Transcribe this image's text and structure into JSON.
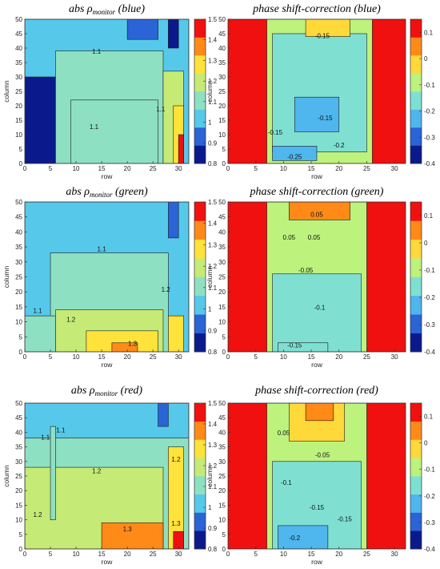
{
  "figure": {
    "background": "#ffffff"
  },
  "chart_data": [
    {
      "id": "abs-blue",
      "type": "heatmap",
      "title_main": "abs ρ",
      "title_subscript": "monitor",
      "title_suffix": " (blue)",
      "xlabel": "row",
      "ylabel": "column",
      "xlim": [
        0,
        32
      ],
      "ylim": [
        0,
        50
      ],
      "x_ticks": [
        "0",
        "5",
        "10",
        "15",
        "20",
        "25",
        "30"
      ],
      "y_ticks": [
        "0",
        "5",
        "10",
        "15",
        "20",
        "25",
        "30",
        "35",
        "40",
        "45",
        "50"
      ],
      "colorbar": {
        "min": 0.8,
        "max": 1.5,
        "ticks": [
          "0.8",
          "0.9",
          "1",
          "1.1",
          "1.2",
          "1.3",
          "1.4",
          "1.5"
        ],
        "colors": [
          "#0a1a8c",
          "#2a64d6",
          "#56c9ea",
          "#8ee0c2",
          "#c6ea76",
          "#ffe23a",
          "#ff8a18",
          "#f01010"
        ]
      },
      "regions": [
        {
          "x": [
            0,
            32
          ],
          "y": [
            0,
            50
          ],
          "value": 1.0
        },
        {
          "x": [
            0,
            6
          ],
          "y": [
            0,
            30
          ],
          "value": 0.8
        },
        {
          "x": [
            6,
            27
          ],
          "y": [
            0,
            39
          ],
          "value": 1.1
        },
        {
          "x": [
            9,
            26
          ],
          "y": [
            0,
            22
          ],
          "value": 1.15
        },
        {
          "x": [
            27,
            31
          ],
          "y": [
            0,
            32
          ],
          "value": 1.2
        },
        {
          "x": [
            29,
            31
          ],
          "y": [
            0,
            20
          ],
          "value": 1.3
        },
        {
          "x": [
            30,
            31
          ],
          "y": [
            0,
            10
          ],
          "value": 1.45
        },
        {
          "x": [
            20,
            26
          ],
          "y": [
            43,
            50
          ],
          "value": 0.9
        },
        {
          "x": [
            28,
            30
          ],
          "y": [
            40,
            50
          ],
          "value": 0.85
        }
      ],
      "contour_labels": [
        {
          "x": 13.5,
          "y": 12.0,
          "text": "1.1"
        },
        {
          "x": 14.0,
          "y": 38.0,
          "text": "1.1"
        },
        {
          "x": 26.5,
          "y": 18.0,
          "text": "1.1"
        }
      ]
    },
    {
      "id": "phase-blue",
      "type": "heatmap",
      "title_main": "phase shift-correction (blue)",
      "xlabel": "row",
      "ylabel": "column",
      "xlim": [
        0,
        32
      ],
      "ylim": [
        0,
        50
      ],
      "x_ticks": [
        "0",
        "5",
        "10",
        "15",
        "20",
        "25",
        "30"
      ],
      "y_ticks": [
        "0",
        "5",
        "10",
        "15",
        "20",
        "25",
        "30",
        "35",
        "40",
        "45",
        "50"
      ],
      "colorbar": {
        "min": -0.4,
        "max": 0.15,
        "ticks": [
          "-0.4",
          "-0.3",
          "-0.2",
          "-0.1",
          "0",
          "0.1"
        ],
        "colors": [
          "#0a1a8c",
          "#2a64d6",
          "#4fb6ee",
          "#7fe0d2",
          "#bdf27d",
          "#ffd83a",
          "#ff8a18",
          "#f01010"
        ]
      },
      "regions": [
        {
          "x": [
            0,
            32
          ],
          "y": [
            0,
            50
          ],
          "value": 0.12
        },
        {
          "x": [
            7,
            26
          ],
          "y": [
            0,
            50
          ],
          "value": -0.12
        },
        {
          "x": [
            8,
            25
          ],
          "y": [
            4,
            45
          ],
          "value": -0.15
        },
        {
          "x": [
            12,
            20
          ],
          "y": [
            11,
            23
          ],
          "value": -0.2
        },
        {
          "x": [
            8,
            16
          ],
          "y": [
            1,
            6
          ],
          "value": -0.25
        },
        {
          "x": [
            14,
            22
          ],
          "y": [
            44,
            50
          ],
          "value": -0.05
        }
      ],
      "contour_labels": [
        {
          "x": 17.0,
          "y": 43.5,
          "text": "-0.15"
        },
        {
          "x": 17.5,
          "y": 15.0,
          "text": "-0.15"
        },
        {
          "x": 20.0,
          "y": 5.5,
          "text": "-0.2"
        },
        {
          "x": 12.0,
          "y": 1.5,
          "text": "-0.25"
        },
        {
          "x": 8.5,
          "y": 10.0,
          "text": "-0.15"
        }
      ]
    },
    {
      "id": "abs-green",
      "type": "heatmap",
      "title_main": "abs ρ",
      "title_subscript": "monitor",
      "title_suffix": " (green)",
      "xlabel": "row",
      "ylabel": "column",
      "xlim": [
        0,
        32
      ],
      "ylim": [
        0,
        50
      ],
      "x_ticks": [
        "0",
        "5",
        "10",
        "15",
        "20",
        "25",
        "30"
      ],
      "y_ticks": [
        "0",
        "5",
        "10",
        "15",
        "20",
        "25",
        "30",
        "35",
        "40",
        "45",
        "50"
      ],
      "colorbar": {
        "min": 0.8,
        "max": 1.5,
        "ticks": [
          "0.8",
          "0.9",
          "1",
          "1.1",
          "1.2",
          "1.3",
          "1.4",
          "1.5"
        ],
        "colors": [
          "#0a1a8c",
          "#2a64d6",
          "#56c9ea",
          "#8ee0c2",
          "#c6ea76",
          "#ffe23a",
          "#ff8a18",
          "#f01010"
        ]
      },
      "regions": [
        {
          "x": [
            0,
            32
          ],
          "y": [
            0,
            50
          ],
          "value": 1.05
        },
        {
          "x": [
            5,
            28
          ],
          "y": [
            0,
            33
          ],
          "value": 1.15
        },
        {
          "x": [
            0,
            6
          ],
          "y": [
            0,
            12
          ],
          "value": 1.15
        },
        {
          "x": [
            6,
            27
          ],
          "y": [
            0,
            14
          ],
          "value": 1.22
        },
        {
          "x": [
            12,
            26
          ],
          "y": [
            0,
            7
          ],
          "value": 1.28
        },
        {
          "x": [
            17,
            22
          ],
          "y": [
            0,
            3
          ],
          "value": 1.35
        },
        {
          "x": [
            28,
            30
          ],
          "y": [
            38,
            50
          ],
          "value": 0.9
        },
        {
          "x": [
            28,
            31
          ],
          "y": [
            0,
            12
          ],
          "value": 1.25
        }
      ],
      "contour_labels": [
        {
          "x": 15.0,
          "y": 33.5,
          "text": "1.1"
        },
        {
          "x": 9.0,
          "y": 10.0,
          "text": "1.2"
        },
        {
          "x": 21.0,
          "y": 2.0,
          "text": "1.3"
        },
        {
          "x": 27.5,
          "y": 20.0,
          "text": "1.2"
        },
        {
          "x": 2.5,
          "y": 13.0,
          "text": "1.1"
        }
      ]
    },
    {
      "id": "phase-green",
      "type": "heatmap",
      "title_main": "phase shift-correction (green)",
      "xlabel": "row",
      "ylabel": "column",
      "xlim": [
        0,
        32
      ],
      "ylim": [
        0,
        50
      ],
      "x_ticks": [
        "0",
        "5",
        "10",
        "15",
        "20",
        "25",
        "30"
      ],
      "y_ticks": [
        "0",
        "5",
        "10",
        "15",
        "20",
        "25",
        "30",
        "35",
        "40",
        "45",
        "50"
      ],
      "colorbar": {
        "min": -0.4,
        "max": 0.15,
        "ticks": [
          "-0.4",
          "-0.3",
          "-0.2",
          "-0.1",
          "0",
          "0.1"
        ],
        "colors": [
          "#0a1a8c",
          "#2a64d6",
          "#4fb6ee",
          "#7fe0d2",
          "#bdf27d",
          "#ffd83a",
          "#ff8a18",
          "#f01010"
        ]
      },
      "regions": [
        {
          "x": [
            0,
            32
          ],
          "y": [
            0,
            50
          ],
          "value": 0.12
        },
        {
          "x": [
            7,
            25
          ],
          "y": [
            0,
            50
          ],
          "value": -0.08
        },
        {
          "x": [
            8,
            24
          ],
          "y": [
            0,
            26
          ],
          "value": -0.13
        },
        {
          "x": [
            11,
            22
          ],
          "y": [
            44,
            50
          ],
          "value": 0.02
        },
        {
          "x": [
            9,
            18
          ],
          "y": [
            0,
            3
          ],
          "value": -0.18
        }
      ],
      "contour_labels": [
        {
          "x": 16.0,
          "y": 45.0,
          "text": "0.05"
        },
        {
          "x": 11.0,
          "y": 37.5,
          "text": "0.05"
        },
        {
          "x": 15.5,
          "y": 37.5,
          "text": "0.05"
        },
        {
          "x": 14.0,
          "y": 26.5,
          "text": "-0.05"
        },
        {
          "x": 16.5,
          "y": 14.0,
          "text": "-0.1"
        },
        {
          "x": 12.0,
          "y": 1.5,
          "text": "-0.15"
        }
      ]
    },
    {
      "id": "abs-red",
      "type": "heatmap",
      "title_main": "abs ρ",
      "title_subscript": "monitor",
      "title_suffix": " (red)",
      "xlabel": "row",
      "ylabel": "column",
      "xlim": [
        0,
        32
      ],
      "ylim": [
        0,
        50
      ],
      "x_ticks": [
        "0",
        "5",
        "10",
        "15",
        "20",
        "25",
        "30"
      ],
      "y_ticks": [
        "0",
        "5",
        "10",
        "15",
        "20",
        "25",
        "30",
        "35",
        "40",
        "45",
        "50"
      ],
      "colorbar": {
        "min": 0.8,
        "max": 1.5,
        "ticks": [
          "0.8",
          "0.9",
          "1",
          "1.1",
          "1.2",
          "1.3",
          "1.4",
          "1.5"
        ],
        "colors": [
          "#0a1a8c",
          "#2a64d6",
          "#56c9ea",
          "#8ee0c2",
          "#c6ea76",
          "#ffe23a",
          "#ff8a18",
          "#f01010"
        ]
      },
      "regions": [
        {
          "x": [
            0,
            32
          ],
          "y": [
            0,
            50
          ],
          "value": 1.05
        },
        {
          "x": [
            0,
            32
          ],
          "y": [
            0,
            38
          ],
          "value": 1.15
        },
        {
          "x": [
            0,
            27
          ],
          "y": [
            0,
            28
          ],
          "value": 1.22
        },
        {
          "x": [
            15,
            27
          ],
          "y": [
            0,
            9
          ],
          "value": 1.35
        },
        {
          "x": [
            28,
            31
          ],
          "y": [
            0,
            35
          ],
          "value": 1.3
        },
        {
          "x": [
            29,
            31
          ],
          "y": [
            0,
            6
          ],
          "value": 1.45
        },
        {
          "x": [
            5,
            6
          ],
          "y": [
            10,
            42
          ],
          "value": 1.12
        },
        {
          "x": [
            26,
            28
          ],
          "y": [
            42,
            50
          ],
          "value": 0.9
        }
      ],
      "contour_labels": [
        {
          "x": 7.0,
          "y": 40.0,
          "text": "1.1"
        },
        {
          "x": 4.0,
          "y": 37.5,
          "text": "1.1"
        },
        {
          "x": 14.0,
          "y": 26.0,
          "text": "1.2"
        },
        {
          "x": 20.0,
          "y": 6.0,
          "text": "1.3"
        },
        {
          "x": 2.5,
          "y": 11.0,
          "text": "1.2"
        },
        {
          "x": 29.5,
          "y": 30.0,
          "text": "1.2"
        },
        {
          "x": 29.5,
          "y": 8.0,
          "text": "1.3"
        }
      ]
    },
    {
      "id": "phase-red",
      "type": "heatmap",
      "title_main": "phase shift-correction (red)",
      "xlabel": "row",
      "ylabel": "column",
      "xlim": [
        0,
        32
      ],
      "ylim": [
        0,
        50
      ],
      "x_ticks": [
        "0",
        "5",
        "10",
        "15",
        "20",
        "25",
        "30"
      ],
      "y_ticks": [
        "0",
        "5",
        "10",
        "15",
        "20",
        "25",
        "30",
        "35",
        "40",
        "45",
        "50"
      ],
      "colorbar": {
        "min": -0.4,
        "max": 0.15,
        "ticks": [
          "-0.4",
          "-0.3",
          "-0.2",
          "-0.1",
          "0",
          "0.1"
        ],
        "colors": [
          "#0a1a8c",
          "#2a64d6",
          "#4fb6ee",
          "#7fe0d2",
          "#bdf27d",
          "#ffd83a",
          "#ff8a18",
          "#f01010"
        ]
      },
      "regions": [
        {
          "x": [
            0,
            32
          ],
          "y": [
            0,
            50
          ],
          "value": 0.12
        },
        {
          "x": [
            7,
            25
          ],
          "y": [
            0,
            50
          ],
          "value": -0.1
        },
        {
          "x": [
            8,
            24
          ],
          "y": [
            0,
            30
          ],
          "value": -0.14
        },
        {
          "x": [
            9,
            18
          ],
          "y": [
            0,
            8
          ],
          "value": -0.2
        },
        {
          "x": [
            11,
            21
          ],
          "y": [
            37,
            50
          ],
          "value": 0.0
        },
        {
          "x": [
            14,
            19
          ],
          "y": [
            44,
            50
          ],
          "value": 0.05
        }
      ],
      "contour_labels": [
        {
          "x": 10.0,
          "y": 39.0,
          "text": "0.05"
        },
        {
          "x": 17.0,
          "y": 31.5,
          "text": "-0.05"
        },
        {
          "x": 10.5,
          "y": 22.0,
          "text": "-0.1"
        },
        {
          "x": 16.0,
          "y": 13.5,
          "text": "-0.15"
        },
        {
          "x": 21.0,
          "y": 9.5,
          "text": "-0.15"
        },
        {
          "x": 12.0,
          "y": 3.0,
          "text": "-0.2"
        }
      ]
    }
  ]
}
